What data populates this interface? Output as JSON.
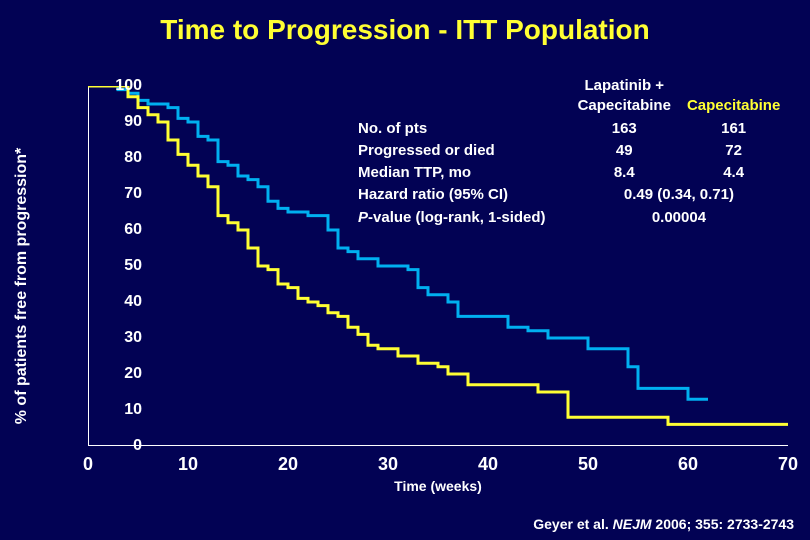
{
  "title": "Time to Progression - ITT Population",
  "ylabel": "% of patients free from progression*",
  "xlabel": "Time (weeks)",
  "citation_prefix": "Geyer et al. ",
  "citation_journal": "NEJM",
  "citation_suffix": " 2006; 355: 2733-2743",
  "colors": {
    "background": "#020254",
    "title": "#ffff33",
    "axis": "#ffffff",
    "text": "#ffffff",
    "series_a": "#00b0f0",
    "series_b": "#ffff33",
    "stats_hdr1": "#ffffff",
    "stats_hdr2": "#ffff33"
  },
  "axes": {
    "xlim": [
      0,
      70
    ],
    "ylim": [
      0,
      100
    ],
    "xticks": [
      0,
      10,
      20,
      30,
      40,
      50,
      60,
      70
    ],
    "yticks": [
      0,
      10,
      20,
      30,
      40,
      50,
      60,
      70,
      80,
      90,
      100
    ]
  },
  "chart": {
    "type": "kaplan-meier-step",
    "line_width": 3,
    "series": [
      {
        "name": "Lapatinib + Capecitabine",
        "color_key": "series_a",
        "points": [
          [
            0,
            100
          ],
          [
            3,
            100
          ],
          [
            3,
            99
          ],
          [
            4,
            99
          ],
          [
            4,
            98
          ],
          [
            5,
            98
          ],
          [
            5,
            96
          ],
          [
            6,
            96
          ],
          [
            6,
            95
          ],
          [
            8,
            95
          ],
          [
            8,
            94
          ],
          [
            9,
            94
          ],
          [
            9,
            91
          ],
          [
            10,
            91
          ],
          [
            10,
            90
          ],
          [
            11,
            90
          ],
          [
            11,
            86
          ],
          [
            12,
            86
          ],
          [
            12,
            85
          ],
          [
            13,
            85
          ],
          [
            13,
            79
          ],
          [
            14,
            79
          ],
          [
            14,
            78
          ],
          [
            15,
            78
          ],
          [
            15,
            75
          ],
          [
            16,
            75
          ],
          [
            16,
            74
          ],
          [
            17,
            74
          ],
          [
            17,
            72
          ],
          [
            18,
            72
          ],
          [
            18,
            68
          ],
          [
            19,
            68
          ],
          [
            19,
            66
          ],
          [
            20,
            66
          ],
          [
            20,
            65
          ],
          [
            22,
            65
          ],
          [
            22,
            64
          ],
          [
            24,
            64
          ],
          [
            24,
            60
          ],
          [
            25,
            60
          ],
          [
            25,
            55
          ],
          [
            26,
            55
          ],
          [
            26,
            54
          ],
          [
            27,
            54
          ],
          [
            27,
            52
          ],
          [
            29,
            52
          ],
          [
            29,
            50
          ],
          [
            32,
            50
          ],
          [
            32,
            49
          ],
          [
            33,
            49
          ],
          [
            33,
            44
          ],
          [
            34,
            44
          ],
          [
            34,
            42
          ],
          [
            36,
            42
          ],
          [
            36,
            40
          ],
          [
            37,
            40
          ],
          [
            37,
            36
          ],
          [
            42,
            36
          ],
          [
            42,
            33
          ],
          [
            44,
            33
          ],
          [
            44,
            32
          ],
          [
            46,
            32
          ],
          [
            46,
            30
          ],
          [
            50,
            30
          ],
          [
            50,
            27
          ],
          [
            54,
            27
          ],
          [
            54,
            22
          ],
          [
            55,
            22
          ],
          [
            55,
            16
          ],
          [
            60,
            16
          ],
          [
            60,
            13
          ],
          [
            62,
            13
          ]
        ]
      },
      {
        "name": "Capecitabine",
        "color_key": "series_b",
        "points": [
          [
            0,
            100
          ],
          [
            4,
            100
          ],
          [
            4,
            97
          ],
          [
            5,
            97
          ],
          [
            5,
            94
          ],
          [
            6,
            94
          ],
          [
            6,
            92
          ],
          [
            7,
            92
          ],
          [
            7,
            90
          ],
          [
            8,
            90
          ],
          [
            8,
            85
          ],
          [
            9,
            85
          ],
          [
            9,
            81
          ],
          [
            10,
            81
          ],
          [
            10,
            78
          ],
          [
            11,
            78
          ],
          [
            11,
            75
          ],
          [
            12,
            75
          ],
          [
            12,
            72
          ],
          [
            13,
            72
          ],
          [
            13,
            64
          ],
          [
            14,
            64
          ],
          [
            14,
            62
          ],
          [
            15,
            62
          ],
          [
            15,
            60
          ],
          [
            16,
            60
          ],
          [
            16,
            55
          ],
          [
            17,
            55
          ],
          [
            17,
            50
          ],
          [
            18,
            50
          ],
          [
            18,
            49
          ],
          [
            19,
            49
          ],
          [
            19,
            45
          ],
          [
            20,
            45
          ],
          [
            20,
            44
          ],
          [
            21,
            44
          ],
          [
            21,
            41
          ],
          [
            22,
            41
          ],
          [
            22,
            40
          ],
          [
            23,
            40
          ],
          [
            23,
            39
          ],
          [
            24,
            39
          ],
          [
            24,
            37
          ],
          [
            25,
            37
          ],
          [
            25,
            36
          ],
          [
            26,
            36
          ],
          [
            26,
            33
          ],
          [
            27,
            33
          ],
          [
            27,
            31
          ],
          [
            28,
            31
          ],
          [
            28,
            28
          ],
          [
            29,
            28
          ],
          [
            29,
            27
          ],
          [
            31,
            27
          ],
          [
            31,
            25
          ],
          [
            33,
            25
          ],
          [
            33,
            23
          ],
          [
            35,
            23
          ],
          [
            35,
            22
          ],
          [
            36,
            22
          ],
          [
            36,
            20
          ],
          [
            38,
            20
          ],
          [
            38,
            17
          ],
          [
            45,
            17
          ],
          [
            45,
            15
          ],
          [
            48,
            15
          ],
          [
            48,
            8
          ],
          [
            58,
            8
          ],
          [
            58,
            6
          ],
          [
            70,
            6
          ]
        ]
      }
    ]
  },
  "stats": {
    "headers": {
      "arm_a": "Lapatinib +\nCapecitabine",
      "arm_b": "Capecitabine"
    },
    "rows": [
      {
        "label": "No. of pts",
        "a": "163",
        "b": "161"
      },
      {
        "label": "Progressed or died",
        "a": "49",
        "b": "72"
      },
      {
        "label": "Median TTP, mo",
        "a": "8.4",
        "b": "4.4"
      }
    ],
    "hr_label": "Hazard ratio (95% CI)",
    "hr_value": "0.49 (0.34, 0.71)",
    "p_label_prefix": "P",
    "p_label_suffix": "-value (log-rank, 1-sided)",
    "p_value": "0.00004"
  }
}
